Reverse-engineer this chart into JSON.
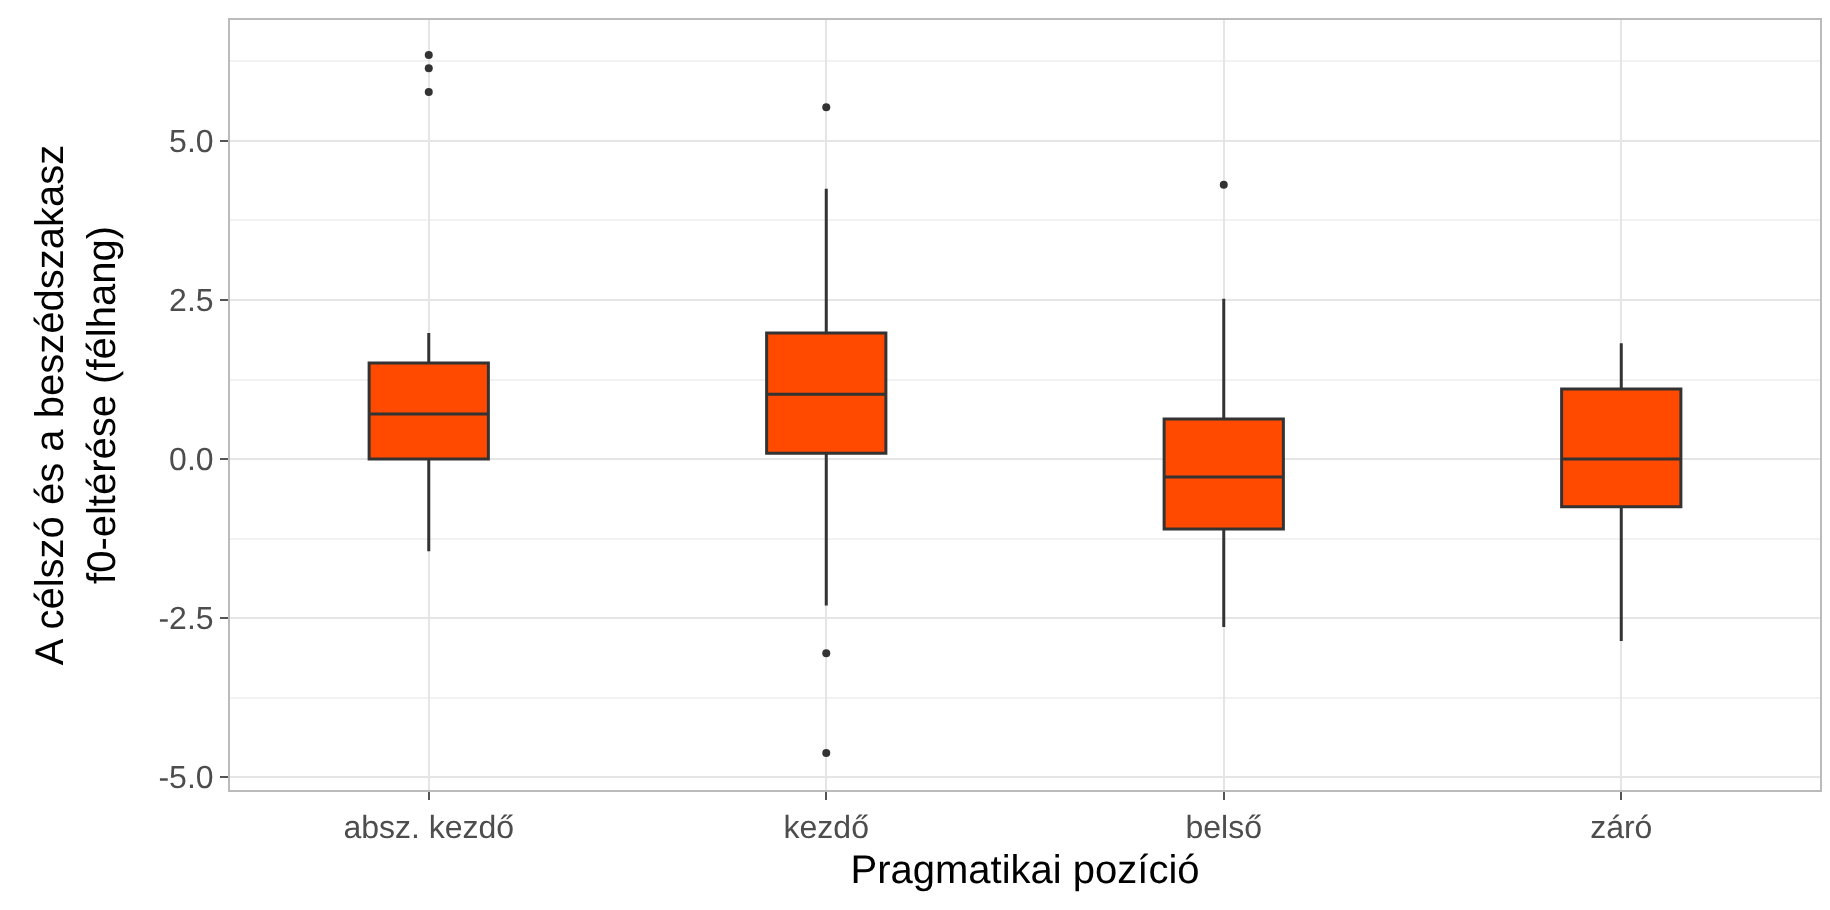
{
  "chart_data": {
    "type": "box",
    "xlabel": "Pragmatikai pozíció",
    "ylabel": "A célszó és a beszédszakasz\nf0-eltérése (félhang)",
    "categories": [
      "absz. kezdő",
      "kezdő",
      "belső",
      "záró"
    ],
    "color": "#ff4a00",
    "boxes": [
      {
        "low": -1.45,
        "q1": 0.0,
        "median": 0.71,
        "q3": 1.51,
        "high": 1.98,
        "outliers": [
          6.35,
          6.14,
          5.77
        ]
      },
      {
        "low": -2.3,
        "q1": 0.09,
        "median": 1.02,
        "q3": 1.98,
        "high": 4.25,
        "outliers": [
          5.53,
          -3.05,
          -4.62
        ]
      },
      {
        "low": -2.64,
        "q1": -1.1,
        "median": -0.28,
        "q3": 0.63,
        "high": 2.52,
        "outliers": [
          4.31
        ]
      },
      {
        "low": -2.86,
        "q1": -0.75,
        "median": 0.0,
        "q3": 1.1,
        "high": 1.82
      }
    ],
    "ylim": [
      -5.2,
      6.9
    ],
    "yticks": [
      {
        "value": -5,
        "label": "-5.0"
      },
      {
        "value": -2.5,
        "label": "-2.5"
      },
      {
        "value": 0,
        "label": "0.0"
      },
      {
        "value": 2.5,
        "label": "2.5"
      },
      {
        "value": 5,
        "label": "5.0"
      }
    ],
    "grid": true,
    "legend": false
  }
}
